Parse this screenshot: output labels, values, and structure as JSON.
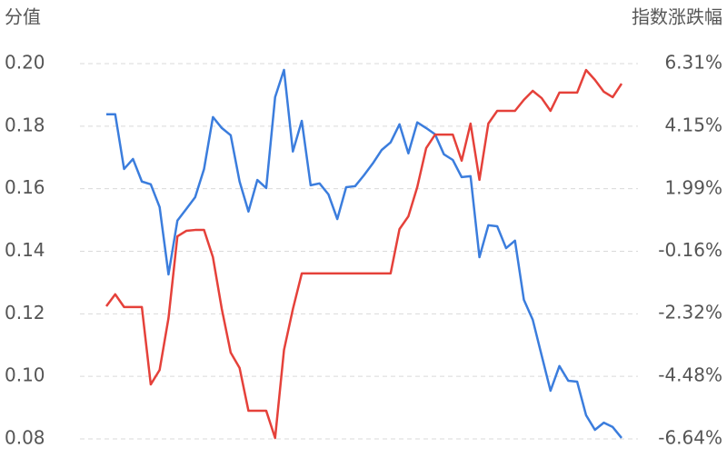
{
  "chart_data": {
    "type": "line",
    "y_label": "分值",
    "y2_label": "指数涨跌幅",
    "ylim": [
      0.08,
      0.2
    ],
    "yticks": [
      0.08,
      {
        "value": 0.1,
        "label": "0.10"
      },
      0.12,
      0.14,
      0.16,
      0.18,
      {
        "value": 0.2,
        "label": "0.20"
      }
    ],
    "y2lim": [
      -6.64,
      6.31
    ],
    "y2ticks": [
      {
        "value": -6.64,
        "label": "-6.64%"
      },
      {
        "value": -4.48,
        "label": "-4.48%"
      },
      {
        "value": -2.32,
        "label": "-2.32%"
      },
      {
        "value": -0.16,
        "label": "-0.16%"
      },
      {
        "value": 1.99,
        "label": "1.99%"
      },
      {
        "value": 4.15,
        "label": "4.15%"
      },
      {
        "value": 6.31,
        "label": "6.31%"
      }
    ],
    "grid": true,
    "series": [
      {
        "color": "#3b7ddd",
        "values": [
          0.1838,
          0.1838,
          0.1663,
          0.1695,
          0.1623,
          0.1614,
          0.1541,
          0.1326,
          0.1498,
          0.1535,
          0.1573,
          0.1663,
          0.1829,
          0.1794,
          0.1771,
          0.1623,
          0.1527,
          0.1628,
          0.1602,
          0.1893,
          0.198,
          0.1719,
          0.1817,
          0.1611,
          0.1617,
          0.1582,
          0.1503,
          0.1605,
          0.1608,
          0.1643,
          0.1681,
          0.1724,
          0.1748,
          0.1806,
          0.1713,
          0.1812,
          0.1794,
          0.1774,
          0.171,
          0.1692,
          0.1637,
          0.164,
          0.1381,
          0.1483,
          0.148,
          0.141,
          0.1434,
          0.1245,
          0.1181,
          0.1067,
          0.0954,
          0.1033,
          0.0986,
          0.0983,
          0.0876,
          0.0829,
          0.0852,
          0.0838,
          0.0803
        ]
      },
      {
        "color": "#e5413a",
        "axis": "y2",
        "values": [
          -2.06,
          -1.65,
          -2.09,
          -2.09,
          -2.09,
          -4.76,
          -4.26,
          -2.47,
          0.35,
          0.54,
          0.57,
          0.57,
          -0.37,
          -2.16,
          -3.66,
          -4.19,
          -5.67,
          -5.67,
          -5.67,
          -6.61,
          -3.57,
          -2.16,
          -0.93,
          -0.93,
          -0.93,
          -0.93,
          -0.93,
          -0.93,
          -0.93,
          -0.93,
          -0.93,
          -0.93,
          -0.93,
          0.6,
          1.04,
          2.05,
          3.39,
          3.86,
          3.86,
          3.86,
          2.96,
          4.24,
          2.3,
          4.24,
          4.68,
          4.68,
          4.68,
          5.06,
          5.37,
          5.12,
          4.68,
          5.31,
          5.31,
          5.31,
          6.09,
          5.75,
          5.34,
          5.15,
          5.62
        ]
      }
    ]
  }
}
